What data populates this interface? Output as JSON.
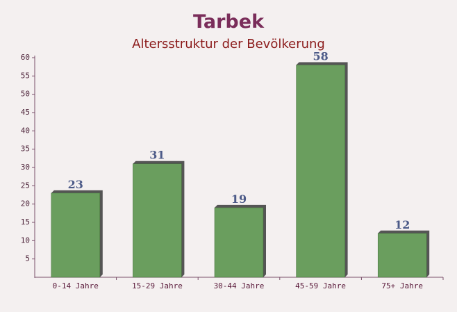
{
  "chart_data": {
    "type": "bar",
    "title": "Tarbek",
    "subtitle": "Altersstruktur der Bevölkerung",
    "categories": [
      "0-14 Jahre",
      "15-29 Jahre",
      "30-44 Jahre",
      "45-59 Jahre",
      "75+ Jahre"
    ],
    "values": [
      23,
      31,
      19,
      58,
      12
    ],
    "color": "#6a9e5e",
    "ylim": [
      0,
      60
    ],
    "yticks": [
      5,
      10,
      15,
      20,
      25,
      30,
      35,
      40,
      45,
      50,
      55,
      60
    ],
    "grid": false
  }
}
